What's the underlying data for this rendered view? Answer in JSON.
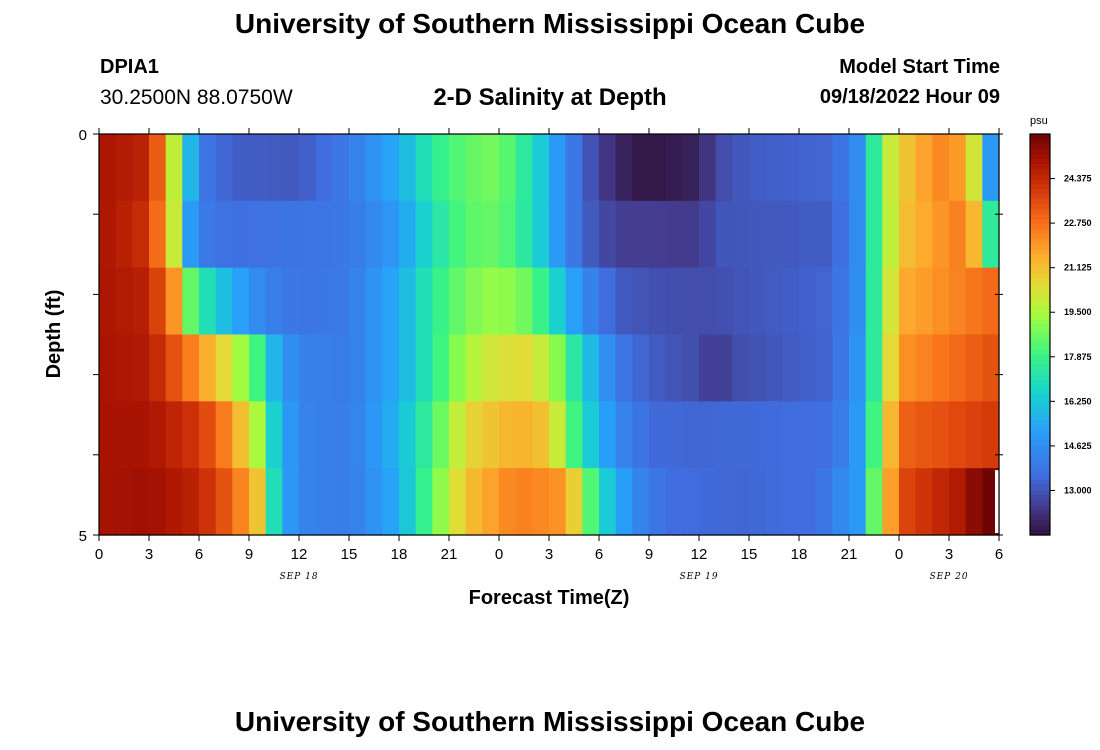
{
  "page": {
    "title": "University of Southern Mississippi Ocean Cube",
    "bottom_title": "University of Southern Mississippi Ocean Cube",
    "station": "DPIA1",
    "coords": "30.2500N  88.0750W",
    "subtitle": "2-D Salinity at Depth",
    "model_start_label": "Model Start Time",
    "model_start_value": "09/18/2022 Hour 09"
  },
  "chart_data": {
    "type": "heatmap",
    "title": "2-D Salinity at Depth",
    "xlabel": "Forecast Time(Z)",
    "ylabel": "Depth (ft)",
    "x_tick_labels": [
      "0",
      "3",
      "6",
      "9",
      "12",
      "15",
      "18",
      "21",
      "0",
      "3",
      "6",
      "9",
      "12",
      "15",
      "18",
      "21",
      "0",
      "3",
      "6"
    ],
    "date_labels": [
      {
        "text": "SEP 18",
        "hour": 12
      },
      {
        "text": "SEP 19",
        "hour": 36
      },
      {
        "text": "SEP 20",
        "hour": 51
      }
    ],
    "x_range_hours": [
      0,
      54
    ],
    "y_tick_labels": [
      "0",
      "5"
    ],
    "y_range": [
      0,
      5
    ],
    "depth_levels": 6,
    "colorbar": {
      "unit": "psu",
      "min": 11.375,
      "max": 26.0,
      "ticks": [
        "24.375",
        "22.750",
        "21.125",
        "19.500",
        "17.875",
        "16.250",
        "14.625",
        "13.000"
      ],
      "tick_values": [
        24.375,
        22.75,
        21.125,
        19.5,
        17.875,
        16.25,
        14.625,
        13.0
      ]
    },
    "profiles": [
      [
        [
          0,
          25
        ],
        [
          3,
          24.5
        ],
        [
          4.3,
          21
        ],
        [
          5,
          17
        ],
        [
          5.8,
          15
        ],
        [
          6.5,
          13.8
        ],
        [
          8,
          13.2
        ],
        [
          12,
          13.1
        ],
        [
          15,
          14
        ],
        [
          18,
          15.5
        ],
        [
          20,
          17.5
        ],
        [
          22,
          18.5
        ],
        [
          24,
          18.8
        ],
        [
          26,
          17
        ],
        [
          27.5,
          15
        ],
        [
          29,
          13.3
        ],
        [
          30.5,
          12.3
        ],
        [
          32,
          11.6
        ],
        [
          33,
          11.5
        ],
        [
          36,
          11.8
        ],
        [
          37,
          12.7
        ],
        [
          39,
          13.2
        ],
        [
          44,
          13.4
        ],
        [
          45.5,
          14.5
        ],
        [
          46.5,
          17.5
        ],
        [
          47.5,
          20
        ],
        [
          49,
          21.5
        ],
        [
          51,
          22.5
        ],
        [
          52.3,
          21
        ],
        [
          53,
          18
        ],
        [
          53.5,
          15
        ],
        [
          54,
          15.5
        ]
      ],
      [
        [
          0,
          25
        ],
        [
          3,
          24.2
        ],
        [
          4.5,
          20
        ],
        [
          5,
          17
        ],
        [
          5.5,
          15
        ],
        [
          6.2,
          14
        ],
        [
          8,
          13.6
        ],
        [
          15,
          13.9
        ],
        [
          18,
          15
        ],
        [
          20,
          17
        ],
        [
          22,
          18.4
        ],
        [
          24,
          18.6
        ],
        [
          26,
          17
        ],
        [
          27.5,
          15
        ],
        [
          29,
          13.3
        ],
        [
          31,
          12.5
        ],
        [
          36,
          12.4
        ],
        [
          37,
          13
        ],
        [
          44,
          13.2
        ],
        [
          45.5,
          14.5
        ],
        [
          46.5,
          17.5
        ],
        [
          48,
          21
        ],
        [
          52,
          22.6
        ],
        [
          53,
          20
        ],
        [
          53.6,
          17
        ],
        [
          54,
          16.5
        ]
      ],
      [
        [
          0,
          25
        ],
        [
          3,
          24.6
        ],
        [
          4.5,
          22
        ],
        [
          5.5,
          18.5
        ],
        [
          6.5,
          17
        ],
        [
          8,
          15.5
        ],
        [
          10,
          14.2
        ],
        [
          12,
          13.8
        ],
        [
          15,
          14
        ],
        [
          18,
          15.5
        ],
        [
          20,
          17.5
        ],
        [
          22,
          18.8
        ],
        [
          24,
          19.3
        ],
        [
          26,
          18.5
        ],
        [
          27.5,
          16.5
        ],
        [
          29,
          14.5
        ],
        [
          31,
          13.2
        ],
        [
          33,
          12.9
        ],
        [
          36,
          12.8
        ],
        [
          44,
          13.4
        ],
        [
          45.5,
          14.6
        ],
        [
          46.5,
          17.5
        ],
        [
          48,
          21.5
        ],
        [
          54,
          23
        ]
      ],
      [
        [
          0,
          25
        ],
        [
          3,
          24.8
        ],
        [
          6,
          22
        ],
        [
          8,
          20
        ],
        [
          9.5,
          18
        ],
        [
          10,
          16.5
        ],
        [
          11,
          15
        ],
        [
          12,
          14.2
        ],
        [
          15,
          14
        ],
        [
          18,
          15.5
        ],
        [
          20,
          17.5
        ],
        [
          22,
          19.5
        ],
        [
          24,
          20.3
        ],
        [
          26,
          20.5
        ],
        [
          27.5,
          19
        ],
        [
          29,
          16.5
        ],
        [
          31,
          14
        ],
        [
          33,
          13.2
        ],
        [
          36,
          12.8
        ],
        [
          37,
          12.3
        ],
        [
          38,
          12.8
        ],
        [
          44,
          13.4
        ],
        [
          45.5,
          14.8
        ],
        [
          46.5,
          17.5
        ],
        [
          48,
          22
        ],
        [
          54,
          23.5
        ]
      ],
      [
        [
          0,
          25
        ],
        [
          3,
          25
        ],
        [
          6,
          24
        ],
        [
          8,
          22
        ],
        [
          9.5,
          19.5
        ],
        [
          10,
          17.5
        ],
        [
          11,
          15.5
        ],
        [
          12,
          14.3
        ],
        [
          15,
          14
        ],
        [
          18,
          15.8
        ],
        [
          20,
          18
        ],
        [
          22,
          20.5
        ],
        [
          25,
          21.5
        ],
        [
          27,
          21
        ],
        [
          28,
          19
        ],
        [
          29,
          17
        ],
        [
          31,
          14.5
        ],
        [
          33,
          13.5
        ],
        [
          36,
          13.4
        ],
        [
          44,
          13.6
        ],
        [
          45.5,
          15
        ],
        [
          46.5,
          18
        ],
        [
          48,
          23
        ],
        [
          54,
          24
        ]
      ],
      [
        [
          0,
          25
        ],
        [
          3,
          25.2
        ],
        [
          6,
          24.5
        ],
        [
          8,
          23
        ],
        [
          9.5,
          21
        ],
        [
          10,
          18.5
        ],
        [
          11,
          15.5
        ],
        [
          12,
          14.3
        ],
        [
          15,
          14
        ],
        [
          18,
          15.5
        ],
        [
          20,
          18.5
        ],
        [
          22,
          21
        ],
        [
          25,
          22.5
        ],
        [
          28,
          22
        ],
        [
          29,
          19.5
        ],
        [
          30,
          17
        ],
        [
          32,
          14.5
        ],
        [
          34,
          13.6
        ],
        [
          38,
          13.4
        ],
        [
          43,
          13.6
        ],
        [
          45.5,
          15
        ],
        [
          46.5,
          18.5
        ],
        [
          48,
          23.5
        ],
        [
          52,
          25
        ],
        [
          53,
          26
        ],
        [
          54,
          26
        ]
      ]
    ]
  }
}
